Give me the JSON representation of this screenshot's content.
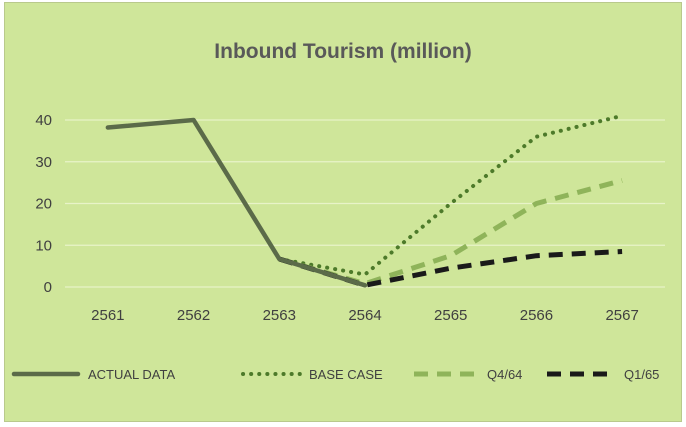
{
  "chart_data": {
    "type": "line",
    "title": "Inbound Tourism (million)",
    "xlabel": "",
    "ylabel": "",
    "categories": [
      "2561",
      "2562",
      "2563",
      "2564",
      "2565",
      "2566",
      "2567"
    ],
    "ylim": [
      0,
      40
    ],
    "yticks": [
      "0",
      "10",
      "20",
      "30",
      "40"
    ],
    "grid": true,
    "legend_position": "bottom",
    "series": [
      {
        "name": "ACTUAL DATA",
        "values": [
          38.2,
          40,
          6.7,
          0.4,
          null,
          null,
          null
        ],
        "color": "#5b6b49",
        "style": "solid"
      },
      {
        "name": "BASE CASE",
        "values": [
          null,
          null,
          6.7,
          3,
          20,
          36,
          41
        ],
        "color": "#4d7a2a",
        "style": "dotted"
      },
      {
        "name": "Q4/64",
        "values": [
          null,
          null,
          6.7,
          0.8,
          7.5,
          20,
          25.5
        ],
        "color": "#8fb45a",
        "style": "dashed"
      },
      {
        "name": "Q1/65",
        "values": [
          null,
          null,
          6.7,
          0.4,
          4.5,
          7.5,
          8.5
        ],
        "color": "#1a1a1a",
        "style": "dashed"
      }
    ]
  }
}
